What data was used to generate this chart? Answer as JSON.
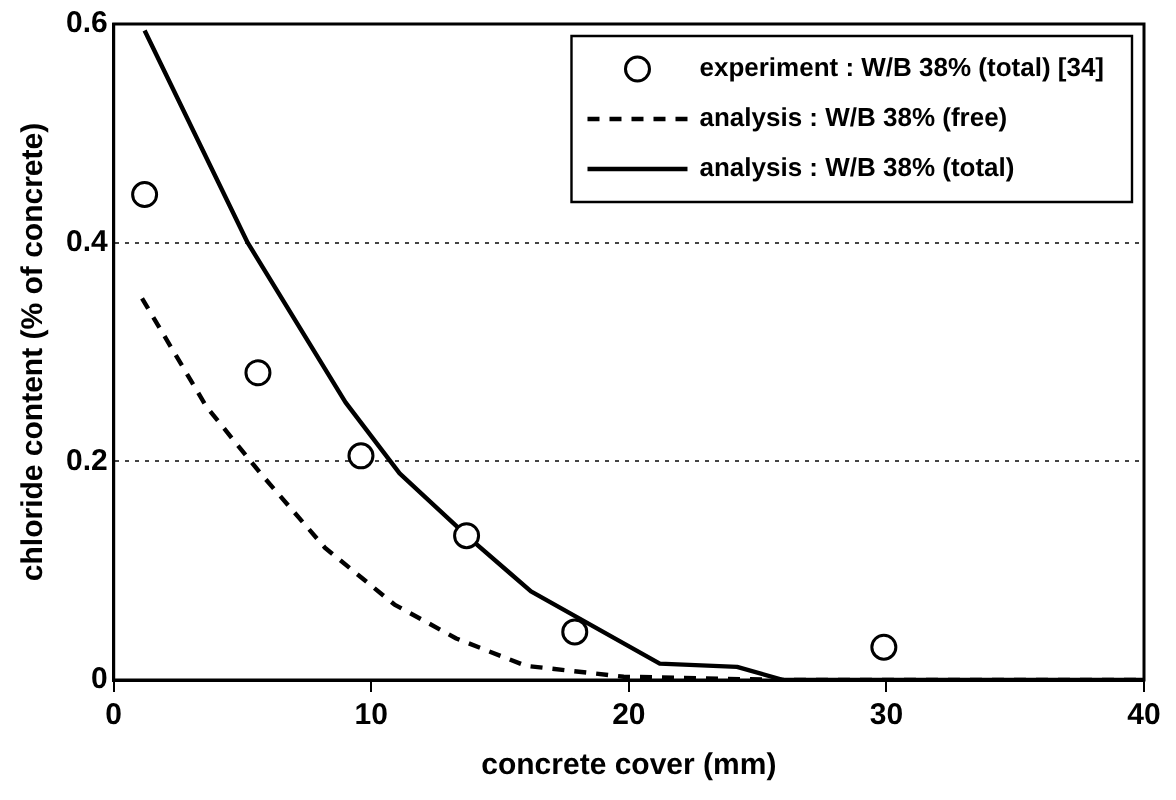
{
  "chart_data": {
    "type": "line",
    "xlabel": "concrete cover (mm)",
    "ylabel": "chloride content (% of concrete)",
    "xlim": [
      0,
      40
    ],
    "xticks": [
      0,
      10,
      20,
      30,
      40
    ],
    "ylim": [
      0,
      0.6
    ],
    "yticks": [
      0,
      0.2,
      0.4,
      0.6
    ],
    "grid": "y",
    "legend": "top right",
    "series": [
      {
        "name": "experiment : W/B 38% (total) [34]",
        "type": "scatter",
        "marker": "circle",
        "color": "#000000",
        "x": [
          1.2,
          5.6,
          9.6,
          13.7,
          17.9,
          29.9
        ],
        "values": [
          0.444,
          0.281,
          0.205,
          0.132,
          0.044,
          0.03
        ]
      },
      {
        "name": "analysis : W/B 38% (free)",
        "type": "line",
        "marker": "none",
        "line_style": "dashed",
        "color": "#000000",
        "x": [
          1.1,
          3.6,
          5.7,
          8.2,
          10.9,
          13.3,
          16,
          19.8,
          26,
          40
        ],
        "values": [
          0.349,
          0.25,
          0.189,
          0.121,
          0.069,
          0.038,
          0.013,
          0.003,
          0,
          0
        ]
      },
      {
        "name": "analysis : W/B 38% (total)",
        "type": "line",
        "marker": "none",
        "line_style": "solid",
        "color": "#000000",
        "x": [
          1.2,
          5.2,
          9,
          11.1,
          13.8,
          16.2,
          21.2,
          24.2,
          26,
          40
        ],
        "values": [
          0.594,
          0.4,
          0.254,
          0.189,
          0.13,
          0.081,
          0.015,
          0.012,
          0,
          0
        ]
      }
    ]
  }
}
